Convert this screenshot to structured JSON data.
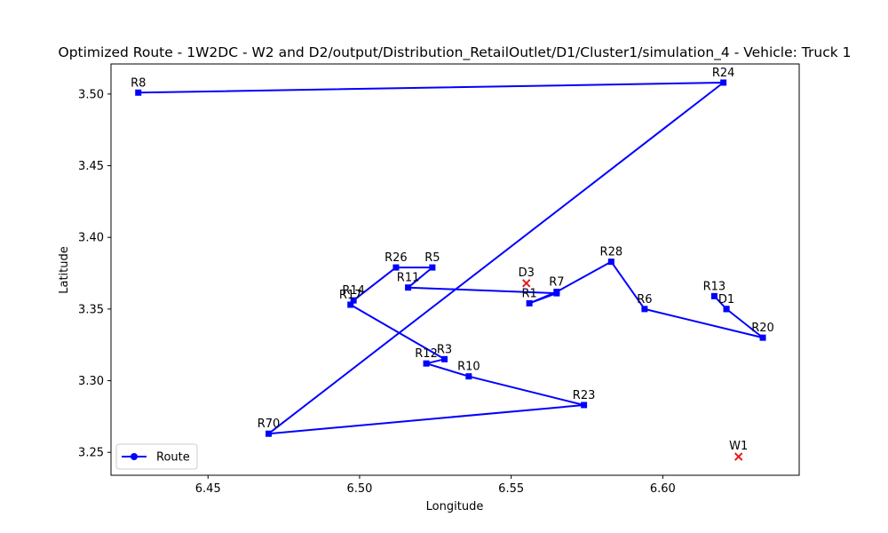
{
  "chart_data": {
    "type": "line",
    "title": "Optimized Route - 1W2DC - W2 and D2/output/Distribution_RetailOutlet/D1/Cluster1/simulation_4 - Vehicle: Truck 1",
    "xlabel": "Longitude",
    "ylabel": "Latitude",
    "xlim": [
      6.418,
      6.645
    ],
    "ylim": [
      3.234,
      3.521
    ],
    "xticks": [
      "6.45",
      "6.50",
      "6.55",
      "6.60"
    ],
    "yticks": [
      "3.25",
      "3.30",
      "3.35",
      "3.40",
      "3.45",
      "3.50"
    ],
    "grid": false,
    "legend_position": "lower-left",
    "route_color": "#0000ff",
    "depot_color": "#e41a1c",
    "legend": [
      {
        "label": "Route",
        "color": "#0000ff",
        "marker": "circle-line"
      }
    ],
    "route": [
      {
        "label": "D1",
        "x": 6.621,
        "y": 3.35
      },
      {
        "label": "R13",
        "x": 6.617,
        "y": 3.359
      },
      {
        "label": "",
        "x": 6.621,
        "y": 3.35
      },
      {
        "label": "R20",
        "x": 6.633,
        "y": 3.33
      },
      {
        "label": "R6",
        "x": 6.594,
        "y": 3.35
      },
      {
        "label": "R28",
        "x": 6.583,
        "y": 3.383
      },
      {
        "label": "R7",
        "x": 6.565,
        "y": 3.362
      },
      {
        "label": "R1",
        "x": 6.556,
        "y": 3.354
      },
      {
        "label": "",
        "x": 6.565,
        "y": 3.361
      },
      {
        "label": "R11",
        "x": 6.516,
        "y": 3.365
      },
      {
        "label": "R5",
        "x": 6.524,
        "y": 3.379
      },
      {
        "label": "R26",
        "x": 6.512,
        "y": 3.379
      },
      {
        "label": "R14",
        "x": 6.498,
        "y": 3.356
      },
      {
        "label": "R17",
        "x": 6.497,
        "y": 3.353
      },
      {
        "label": "R3",
        "x": 6.528,
        "y": 3.315
      },
      {
        "label": "R12",
        "x": 6.522,
        "y": 3.312
      },
      {
        "label": "R10",
        "x": 6.536,
        "y": 3.303
      },
      {
        "label": "R23",
        "x": 6.574,
        "y": 3.283
      },
      {
        "label": "R70",
        "x": 6.47,
        "y": 3.263
      },
      {
        "label": "R24",
        "x": 6.62,
        "y": 3.508
      },
      {
        "label": "R8",
        "x": 6.427,
        "y": 3.501
      }
    ],
    "depots": [
      {
        "label": "D3",
        "x": 6.555,
        "y": 3.368
      },
      {
        "label": "W1",
        "x": 6.625,
        "y": 3.247
      }
    ]
  }
}
